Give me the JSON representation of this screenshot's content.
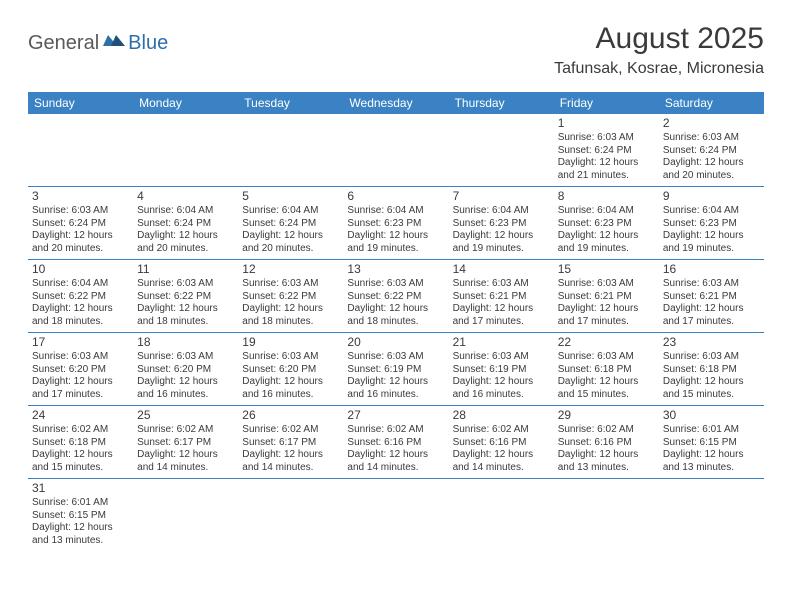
{
  "logo": {
    "part1": "General",
    "part2": "Blue"
  },
  "title": "August 2025",
  "location": "Tafunsak, Kosrae, Micronesia",
  "colors": {
    "header_bg": "#3b82c4",
    "header_text": "#ffffff",
    "logo_gray": "#5a5a5a",
    "logo_blue": "#2f6fa8",
    "text": "#3a3a3a",
    "border": "#3b82c4"
  },
  "weekdays": [
    "Sunday",
    "Monday",
    "Tuesday",
    "Wednesday",
    "Thursday",
    "Friday",
    "Saturday"
  ],
  "weeks": [
    [
      null,
      null,
      null,
      null,
      null,
      {
        "n": "1",
        "sunrise": "6:03 AM",
        "sunset": "6:24 PM",
        "dl": "12 hours and 21 minutes."
      },
      {
        "n": "2",
        "sunrise": "6:03 AM",
        "sunset": "6:24 PM",
        "dl": "12 hours and 20 minutes."
      }
    ],
    [
      {
        "n": "3",
        "sunrise": "6:03 AM",
        "sunset": "6:24 PM",
        "dl": "12 hours and 20 minutes."
      },
      {
        "n": "4",
        "sunrise": "6:04 AM",
        "sunset": "6:24 PM",
        "dl": "12 hours and 20 minutes."
      },
      {
        "n": "5",
        "sunrise": "6:04 AM",
        "sunset": "6:24 PM",
        "dl": "12 hours and 20 minutes."
      },
      {
        "n": "6",
        "sunrise": "6:04 AM",
        "sunset": "6:23 PM",
        "dl": "12 hours and 19 minutes."
      },
      {
        "n": "7",
        "sunrise": "6:04 AM",
        "sunset": "6:23 PM",
        "dl": "12 hours and 19 minutes."
      },
      {
        "n": "8",
        "sunrise": "6:04 AM",
        "sunset": "6:23 PM",
        "dl": "12 hours and 19 minutes."
      },
      {
        "n": "9",
        "sunrise": "6:04 AM",
        "sunset": "6:23 PM",
        "dl": "12 hours and 19 minutes."
      }
    ],
    [
      {
        "n": "10",
        "sunrise": "6:04 AM",
        "sunset": "6:22 PM",
        "dl": "12 hours and 18 minutes."
      },
      {
        "n": "11",
        "sunrise": "6:03 AM",
        "sunset": "6:22 PM",
        "dl": "12 hours and 18 minutes."
      },
      {
        "n": "12",
        "sunrise": "6:03 AM",
        "sunset": "6:22 PM",
        "dl": "12 hours and 18 minutes."
      },
      {
        "n": "13",
        "sunrise": "6:03 AM",
        "sunset": "6:22 PM",
        "dl": "12 hours and 18 minutes."
      },
      {
        "n": "14",
        "sunrise": "6:03 AM",
        "sunset": "6:21 PM",
        "dl": "12 hours and 17 minutes."
      },
      {
        "n": "15",
        "sunrise": "6:03 AM",
        "sunset": "6:21 PM",
        "dl": "12 hours and 17 minutes."
      },
      {
        "n": "16",
        "sunrise": "6:03 AM",
        "sunset": "6:21 PM",
        "dl": "12 hours and 17 minutes."
      }
    ],
    [
      {
        "n": "17",
        "sunrise": "6:03 AM",
        "sunset": "6:20 PM",
        "dl": "12 hours and 17 minutes."
      },
      {
        "n": "18",
        "sunrise": "6:03 AM",
        "sunset": "6:20 PM",
        "dl": "12 hours and 16 minutes."
      },
      {
        "n": "19",
        "sunrise": "6:03 AM",
        "sunset": "6:20 PM",
        "dl": "12 hours and 16 minutes."
      },
      {
        "n": "20",
        "sunrise": "6:03 AM",
        "sunset": "6:19 PM",
        "dl": "12 hours and 16 minutes."
      },
      {
        "n": "21",
        "sunrise": "6:03 AM",
        "sunset": "6:19 PM",
        "dl": "12 hours and 16 minutes."
      },
      {
        "n": "22",
        "sunrise": "6:03 AM",
        "sunset": "6:18 PM",
        "dl": "12 hours and 15 minutes."
      },
      {
        "n": "23",
        "sunrise": "6:03 AM",
        "sunset": "6:18 PM",
        "dl": "12 hours and 15 minutes."
      }
    ],
    [
      {
        "n": "24",
        "sunrise": "6:02 AM",
        "sunset": "6:18 PM",
        "dl": "12 hours and 15 minutes."
      },
      {
        "n": "25",
        "sunrise": "6:02 AM",
        "sunset": "6:17 PM",
        "dl": "12 hours and 14 minutes."
      },
      {
        "n": "26",
        "sunrise": "6:02 AM",
        "sunset": "6:17 PM",
        "dl": "12 hours and 14 minutes."
      },
      {
        "n": "27",
        "sunrise": "6:02 AM",
        "sunset": "6:16 PM",
        "dl": "12 hours and 14 minutes."
      },
      {
        "n": "28",
        "sunrise": "6:02 AM",
        "sunset": "6:16 PM",
        "dl": "12 hours and 14 minutes."
      },
      {
        "n": "29",
        "sunrise": "6:02 AM",
        "sunset": "6:16 PM",
        "dl": "12 hours and 13 minutes."
      },
      {
        "n": "30",
        "sunrise": "6:01 AM",
        "sunset": "6:15 PM",
        "dl": "12 hours and 13 minutes."
      }
    ],
    [
      {
        "n": "31",
        "sunrise": "6:01 AM",
        "sunset": "6:15 PM",
        "dl": "12 hours and 13 minutes."
      },
      null,
      null,
      null,
      null,
      null,
      null
    ]
  ],
  "labels": {
    "sunrise": "Sunrise: ",
    "sunset": "Sunset: ",
    "daylight": "Daylight: "
  }
}
